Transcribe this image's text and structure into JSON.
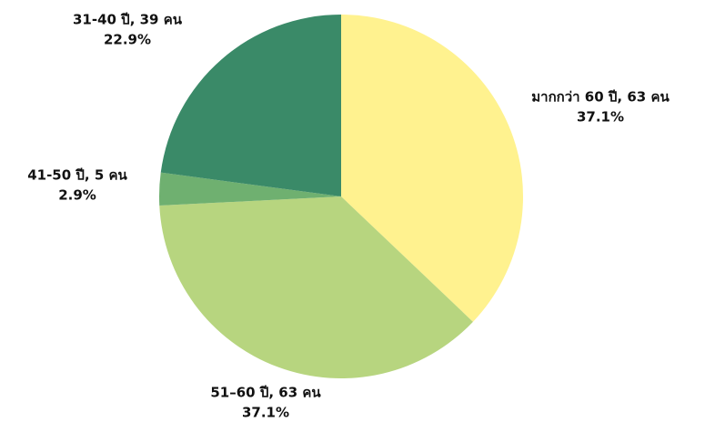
{
  "chart_data": {
    "type": "pie",
    "categories": [
      "มากกว่า 60 ปี, 63 คน",
      "51–60  ปี, 63 คน",
      "41-50 ปี, 5 คน",
      "31-40 ปี, 39 คน"
    ],
    "values": [
      37.1,
      37.1,
      2.9,
      22.9
    ],
    "value_labels": [
      "37.1%",
      "37.1%",
      "2.9%",
      "22.9%"
    ],
    "colors": [
      "#fff28f",
      "#b7d57f",
      "#6fb070",
      "#3a8a68"
    ]
  }
}
